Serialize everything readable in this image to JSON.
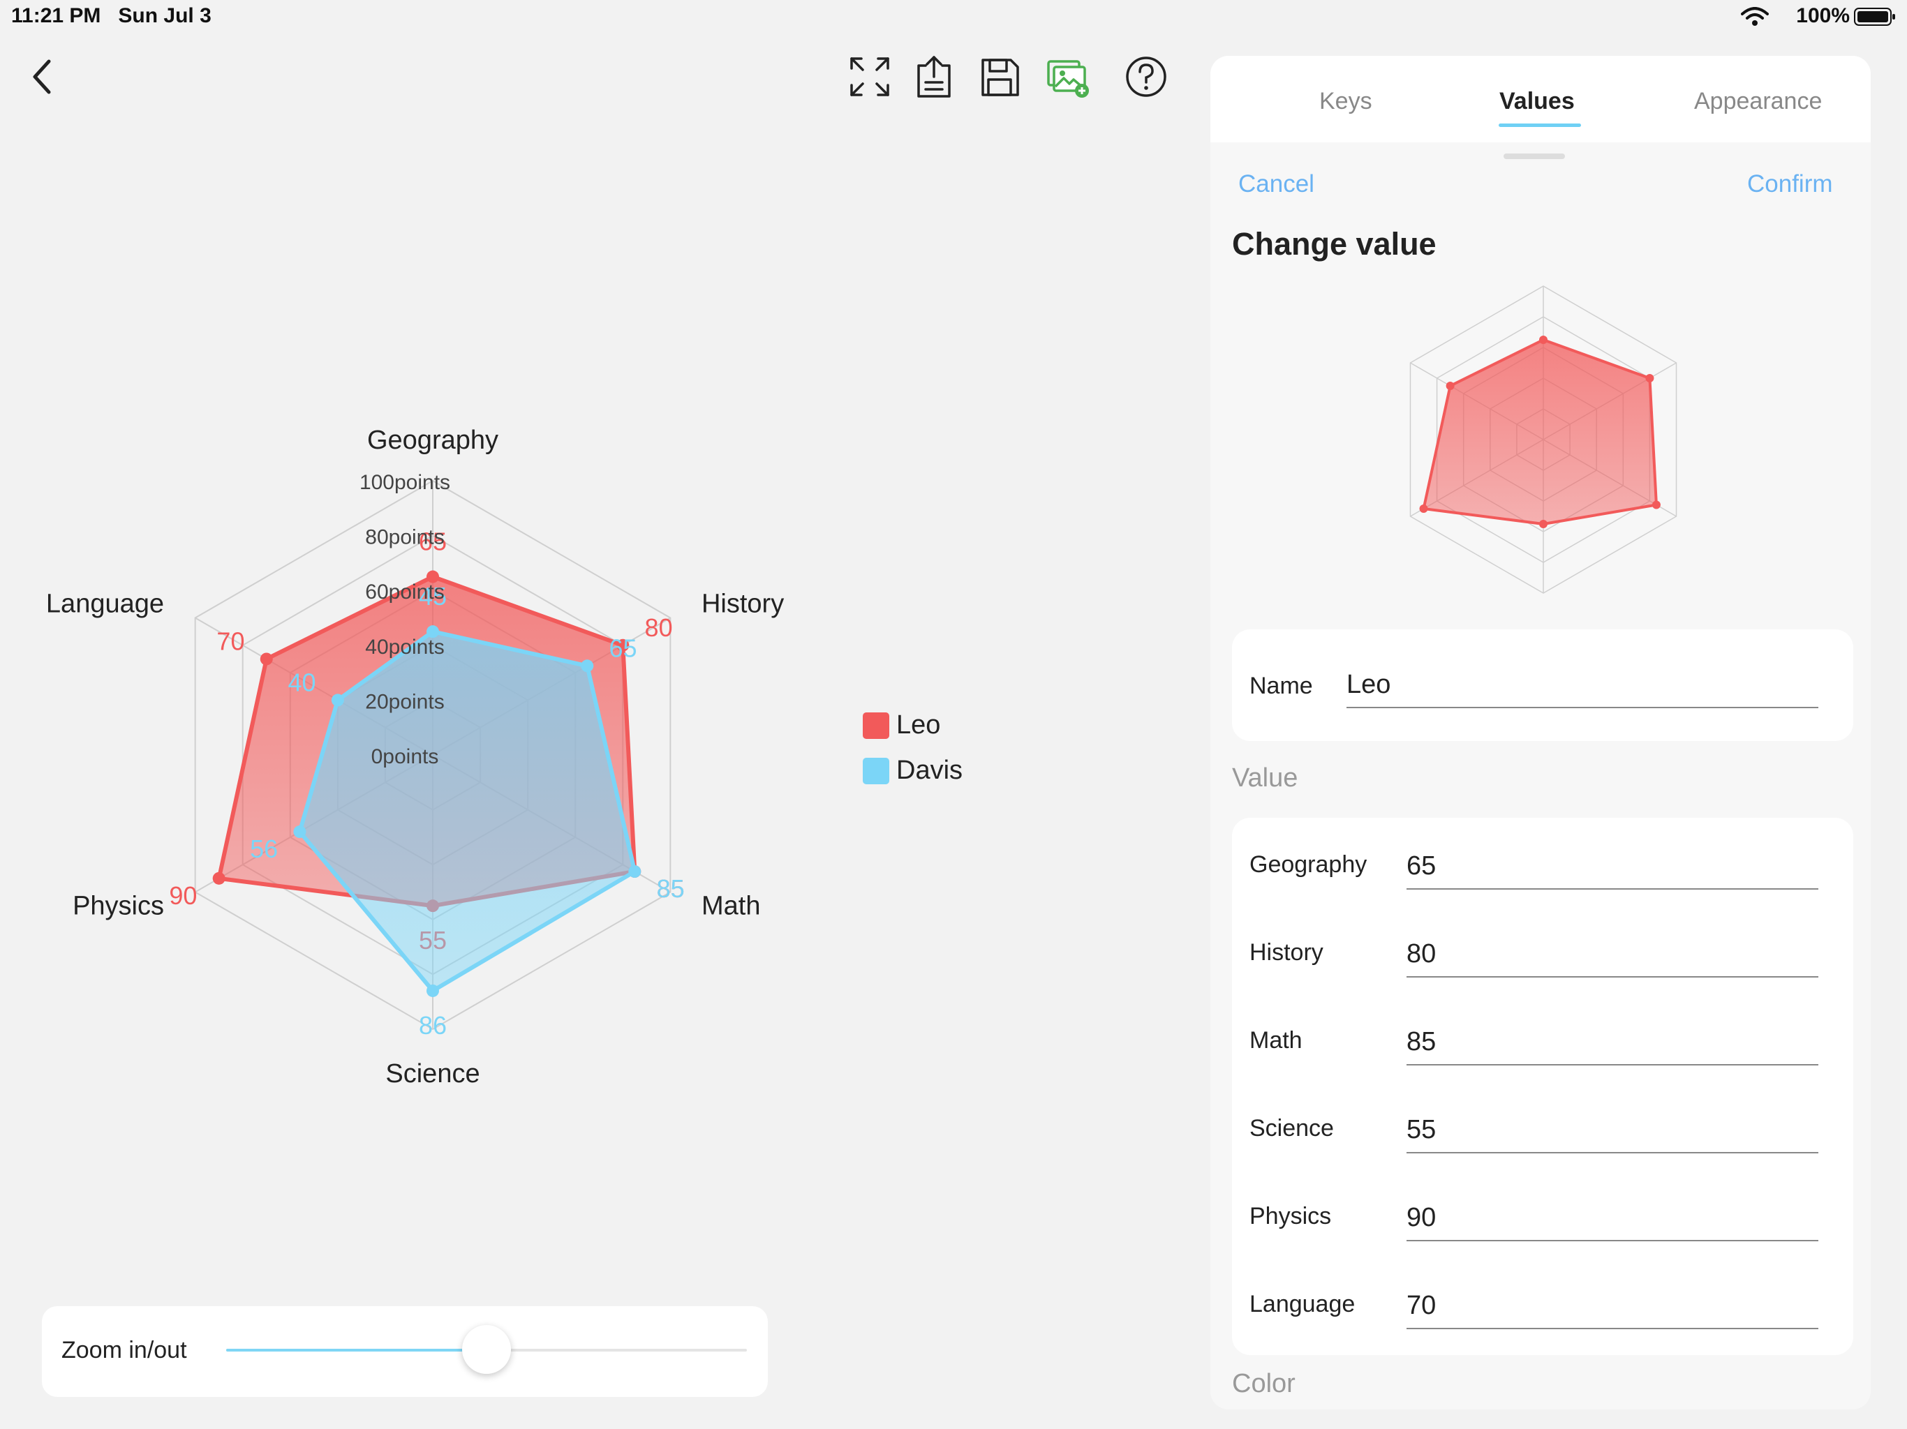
{
  "status_bar": {
    "time": "11:21 PM   Sun Jul 3",
    "battery": "100%"
  },
  "toolbar": {
    "icons": [
      "expand-icon",
      "export-clipboard-icon",
      "save-icon",
      "photo-add-icon",
      "help-icon"
    ],
    "photo_icon_color": "#4caf50"
  },
  "chart_data": {
    "type": "radar",
    "axes": [
      "Geography",
      "History",
      "Math",
      "Science",
      "Physics",
      "Language"
    ],
    "scale_labels": [
      "0points",
      "20points",
      "40points",
      "60points",
      "80points",
      "100points"
    ],
    "range": [
      0,
      100
    ],
    "series": [
      {
        "name": "Leo",
        "color": "#f25a5a",
        "values": [
          65,
          80,
          85,
          55,
          90,
          70
        ],
        "labels": [
          "65",
          "80",
          "85",
          "55",
          "90",
          "70"
        ]
      },
      {
        "name": "Davis",
        "color": "#7bd5f7",
        "values": [
          45,
          65,
          85,
          86,
          56,
          40
        ],
        "labels": [
          "45",
          "65",
          "85",
          "86",
          "56",
          "40"
        ]
      }
    ]
  },
  "legend": [
    {
      "name": "Leo",
      "color": "#f25a5a"
    },
    {
      "name": "Davis",
      "color": "#7bd5f7"
    }
  ],
  "zoom": {
    "label": "Zoom in/out",
    "value": 0.5
  },
  "panel": {
    "tabs": [
      "Keys",
      "Values",
      "Appearance"
    ],
    "active_tab": "Values",
    "cancel": "Cancel",
    "confirm": "Confirm",
    "title": "Change value",
    "name_label": "Name",
    "name_value": "Leo",
    "value_section": "Value",
    "values": [
      {
        "label": "Geography",
        "value": "65"
      },
      {
        "label": "History",
        "value": "80"
      },
      {
        "label": "Math",
        "value": "85"
      },
      {
        "label": "Science",
        "value": "55"
      },
      {
        "label": "Physics",
        "value": "90"
      },
      {
        "label": "Language",
        "value": "70"
      }
    ],
    "color_section": "Color"
  }
}
